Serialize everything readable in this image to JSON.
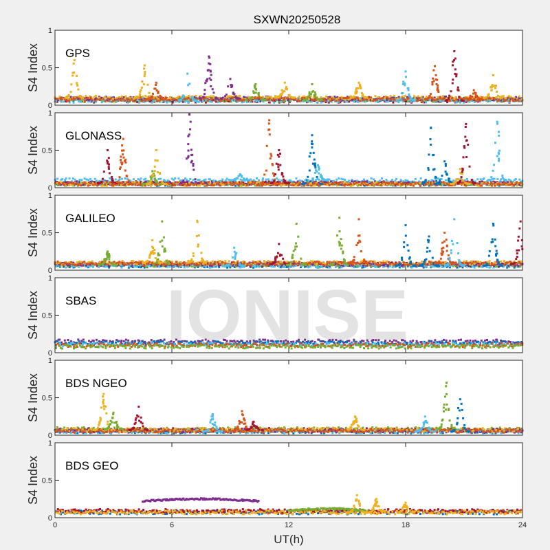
{
  "chart_data": {
    "type": "scatter",
    "title": "SXWN20250528",
    "xlabel": "UT(h)",
    "ylabel": "S4 Index",
    "xlim": [
      0,
      24
    ],
    "ylim": [
      0,
      1
    ],
    "xticks": [
      "0",
      "6",
      "12",
      "18",
      "24"
    ],
    "yticks": [
      "0",
      "0.5",
      "1"
    ],
    "watermark": "IONISE",
    "colors": {
      "blue": "#0072BD",
      "orange": "#D95319",
      "yellow": "#EDB120",
      "purple": "#7E2F8E",
      "green": "#77AC30",
      "cyan": "#4DBEEE",
      "darkred": "#A2142F"
    },
    "panels": [
      {
        "name": "GPS",
        "baselines": {
          "blue": 0.08,
          "darkred": 0.06,
          "green": 0.07,
          "cyan": 0.06,
          "purple": 0.09,
          "yellow": 0.1,
          "orange": 0.08
        },
        "peaks": [
          [
            "yellow",
            1.0,
            0.6
          ],
          [
            "yellow",
            4.6,
            0.53
          ],
          [
            "orange",
            5.2,
            0.3
          ],
          [
            "cyan",
            6.8,
            0.42
          ],
          [
            "purple",
            7.9,
            0.65
          ],
          [
            "purple",
            9.0,
            0.35
          ],
          [
            "green",
            10.3,
            0.28
          ],
          [
            "yellow",
            11.8,
            0.3
          ],
          [
            "green",
            13.2,
            0.28
          ],
          [
            "yellow",
            15.6,
            0.3
          ],
          [
            "cyan",
            18.0,
            0.45
          ],
          [
            "orange",
            19.5,
            0.52
          ],
          [
            "darkred",
            20.5,
            0.72
          ],
          [
            "orange",
            21.5,
            0.2
          ],
          [
            "yellow",
            22.5,
            0.4
          ]
        ]
      },
      {
        "name": "GLONASS",
        "baselines": {
          "blue": 0.05,
          "darkred": 0.06,
          "green": 0.05,
          "cyan": 0.1,
          "purple": 0.06,
          "yellow": 0.05,
          "orange": 0.05
        },
        "peaks": [
          [
            "darkred",
            2.7,
            0.5
          ],
          [
            "orange",
            3.5,
            0.65
          ],
          [
            "green",
            5.0,
            0.22
          ],
          [
            "yellow",
            5.2,
            0.5
          ],
          [
            "purple",
            6.9,
            0.98
          ],
          [
            "cyan",
            9.5,
            0.18
          ],
          [
            "orange",
            11.0,
            0.9
          ],
          [
            "darkred",
            11.5,
            0.5
          ],
          [
            "blue",
            13.2,
            0.7
          ],
          [
            "cyan",
            13.5,
            0.3
          ],
          [
            "blue",
            19.3,
            0.8
          ],
          [
            "blue",
            20.0,
            0.35
          ],
          [
            "yellow",
            20.8,
            0.25
          ],
          [
            "darkred",
            21.1,
            0.85
          ],
          [
            "cyan",
            22.7,
            0.88
          ]
        ]
      },
      {
        "name": "GALILEO",
        "baselines": {
          "blue": 0.06,
          "darkred": 0.08,
          "green": 0.07,
          "cyan": 0.06,
          "purple": 0.08,
          "yellow": 0.1,
          "orange": 0.09
        },
        "peaks": [
          [
            "green",
            2.7,
            0.25
          ],
          [
            "yellow",
            5.0,
            0.4
          ],
          [
            "green",
            5.5,
            0.65
          ],
          [
            "yellow",
            7.3,
            0.66
          ],
          [
            "cyan",
            9.2,
            0.3
          ],
          [
            "darkred",
            11.5,
            0.35
          ],
          [
            "green",
            12.4,
            0.62
          ],
          [
            "green",
            14.6,
            0.7
          ],
          [
            "orange",
            15.6,
            0.68
          ],
          [
            "blue",
            18.0,
            0.6
          ],
          [
            "blue",
            19.2,
            0.45
          ],
          [
            "orange",
            20.0,
            0.5
          ],
          [
            "cyan",
            20.5,
            0.68
          ],
          [
            "blue",
            22.5,
            0.62
          ],
          [
            "darkred",
            23.9,
            0.65
          ]
        ]
      },
      {
        "name": "SBAS",
        "baselines": {
          "purple": 0.15,
          "blue": 0.13,
          "cyan": 0.11,
          "orange": 0.1,
          "green": 0.08
        },
        "peaks": []
      },
      {
        "name": "BDS NGEO",
        "baselines": {
          "blue": 0.05,
          "darkred": 0.07,
          "green": 0.08,
          "cyan": 0.05,
          "purple": 0.06,
          "yellow": 0.07,
          "orange": 0.06
        },
        "peaks": [
          [
            "yellow",
            2.5,
            0.55
          ],
          [
            "green",
            3.0,
            0.3
          ],
          [
            "darkred",
            4.3,
            0.38
          ],
          [
            "cyan",
            8.1,
            0.28
          ],
          [
            "orange",
            9.6,
            0.32
          ],
          [
            "darkred",
            10.2,
            0.18
          ],
          [
            "yellow",
            15.4,
            0.25
          ],
          [
            "cyan",
            19.0,
            0.25
          ],
          [
            "green",
            20.1,
            0.7
          ],
          [
            "blue",
            20.8,
            0.48
          ]
        ]
      },
      {
        "name": "BDS GEO",
        "baselines": {
          "blue": 0.07,
          "orange": 0.08,
          "darkred": 0.09,
          "yellow": 0.07
        },
        "segments": [
          [
            "purple",
            4.5,
            10.5,
            0.25
          ],
          [
            "green",
            12.0,
            16.0,
            0.12
          ]
        ],
        "peaks": [
          [
            "yellow",
            15.5,
            0.3
          ],
          [
            "yellow",
            16.5,
            0.25
          ],
          [
            "yellow",
            18.0,
            0.2
          ]
        ]
      }
    ]
  }
}
